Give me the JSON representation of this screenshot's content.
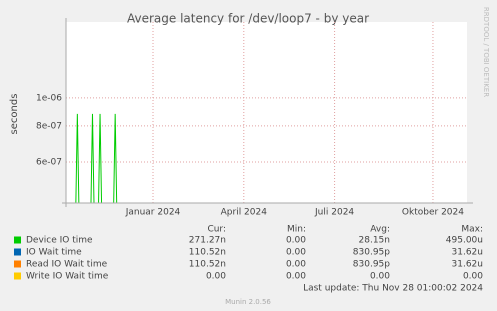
{
  "chart_data": {
    "type": "line",
    "title": "Average latency for /dev/loop7 - by year",
    "y_label": "seconds",
    "side_label": "RRDTOOL / TOBI OETIKER",
    "log_scale": true,
    "grid": true,
    "ylim": [
      4.33e-07,
      1.83e-06
    ],
    "yticks": [
      {
        "value": 6e-07,
        "label": "6e-07"
      },
      {
        "value": 8e-07,
        "label": "8e-07"
      },
      {
        "value": 1e-06,
        "label": "1e-06"
      }
    ],
    "categories": [
      null,
      null,
      null,
      null,
      null,
      null,
      null,
      null,
      null,
      null,
      null,
      "Januar 2024",
      null,
      null,
      null,
      null,
      null,
      null,
      null,
      null,
      null,
      null,
      null,
      "April 2024",
      null,
      null,
      null,
      null,
      null,
      null,
      null,
      null,
      null,
      null,
      null,
      "Juli 2024",
      null,
      null,
      null,
      null,
      null,
      null,
      null,
      null,
      null,
      null,
      null,
      null,
      "Oktober 2024",
      null,
      null,
      null,
      null
    ],
    "series": [
      {
        "name": "Device IO time",
        "color": "#00cc00",
        "values": [
          null,
          8.8e-07,
          null,
          8.8e-07,
          8.8e-07,
          null,
          8.8e-07,
          null,
          null,
          null,
          null,
          null,
          null,
          null,
          null,
          null,
          null,
          null,
          null,
          null,
          null,
          null,
          null,
          null,
          null,
          null,
          null,
          null,
          null,
          null,
          null,
          null,
          null,
          null,
          null,
          null,
          null,
          null,
          null,
          null,
          null,
          null,
          null,
          null,
          null,
          null,
          null,
          null,
          null,
          null,
          null,
          null,
          null
        ]
      }
    ],
    "legend": {
      "headers": [
        "Cur:",
        "Min:",
        "Avg:",
        "Max:"
      ],
      "rows": [
        {
          "name": "Device IO time",
          "color": "#00cc00",
          "cells": [
            "271.27n",
            "0.00",
            "28.15n",
            "495.00u"
          ]
        },
        {
          "name": "IO Wait time",
          "color": "#0066b3",
          "cells": [
            "110.52n",
            "0.00",
            "830.95p",
            "31.62u"
          ]
        },
        {
          "name": "Read IO Wait time",
          "color": "#ff8000",
          "cells": [
            "110.52n",
            "0.00",
            "830.95p",
            "31.62u"
          ]
        },
        {
          "name": "Write IO Wait time",
          "color": "#ffcc00",
          "cells": [
            "0.00",
            "0.00",
            "0.00",
            "0.00"
          ]
        }
      ]
    },
    "last_update": "Last update: Thu Nov 28 01:00:02 2024",
    "footer": "Munin 2.0.56"
  }
}
